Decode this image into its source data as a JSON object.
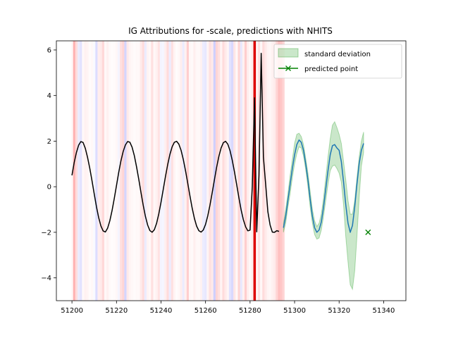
{
  "chart_data": {
    "type": "line",
    "title": "IG Attributions for -scale, predictions with NHITS",
    "xlabel": "",
    "ylabel": "",
    "xlim": [
      51193,
      51350
    ],
    "ylim": [
      -5,
      6.4
    ],
    "xticks": [
      51200,
      51220,
      51240,
      51260,
      51280,
      51300,
      51320,
      51340
    ],
    "yticks": [
      -4,
      -2,
      0,
      2,
      4,
      6
    ],
    "grid": false,
    "legend_position": "top-right",
    "legend": [
      {
        "label": "standard deviation",
        "kind": "patch"
      },
      {
        "label": "predicted point",
        "kind": "line-x"
      }
    ],
    "colors": {
      "history": "#000000",
      "forecast": "#1f77b4",
      "std_fill": "#2ca02c",
      "predicted_point": "#008000",
      "positive_attr": "#ff0000",
      "negative_attr": "#0000ff"
    },
    "attributions": {
      "x_start": 51200,
      "x_end": 51295,
      "values": [
        0.05,
        0.55,
        0.25,
        -0.1,
        -0.15,
        0.05,
        0.1,
        0.08,
        0.03,
        0.05,
        -0.03,
        -0.18,
        0.12,
        0.15,
        0.28,
        0.05,
        0.1,
        0.04,
        0.02,
        0.03,
        0.06,
        -0.05,
        0.22,
        0.3,
        -0.22,
        0.15,
        0.08,
        0.05,
        0.03,
        0.05,
        0.04,
        0.15,
        0.25,
        -0.1,
        0.08,
        0.05,
        0.22,
        0.06,
        0.1,
        0.2,
        -0.06,
        -0.05,
        0.12,
        0.25,
        -0.1,
        0.22,
        0.08,
        0.03,
        0.05,
        0.12,
        -0.1,
        0.1,
        0.35,
        0.06,
        0.04,
        0.12,
        0.06,
        0.05,
        0.1,
        -0.1,
        -0.12,
        0.08,
        0.22,
        0.15,
        -0.25,
        0.3,
        0.22,
        0.08,
        0.25,
        0.15,
        0.07,
        -0.15,
        -0.2,
        0.18,
        0.05,
        0.3,
        -0.12,
        0.1,
        0.35,
        0.12,
        0.05,
        0.12,
        1.0,
        0.06,
        0.22,
        0.06,
        0.25,
        0.15,
        0.08,
        0.06,
        0.1,
        0.14,
        0.3,
        0.45,
        0.4,
        0.3
      ]
    },
    "history": {
      "x_start": 51200,
      "values": [
        0.5,
        1.059,
        1.5,
        1.822,
        1.981,
        1.941,
        1.683,
        1.289,
        0.811,
        0.264,
        -0.317,
        -0.877,
        -1.356,
        -1.72,
        -1.94,
        -1.987,
        -1.823,
        -1.5,
        -1.052,
        -0.519,
        0.052,
        0.625,
        1.135,
        1.544,
        1.832,
        1.982,
        1.952,
        1.736,
        1.371,
        0.88,
        0.332,
        -0.248,
        -0.81,
        -1.304,
        -1.682,
        -1.924,
        -1.998,
        -1.889,
        -1.611,
        -1.194,
        -0.682,
        -0.121,
        0.446,
        0.972,
        1.419,
        1.751,
        1.951,
        1.993,
        1.871,
        1.601,
        1.2,
        0.709,
        0.161,
        -0.404,
        -0.94,
        -1.389,
        -1.729,
        -1.93,
        -1.992,
        -1.898,
        -1.653,
        -1.278,
        -0.801,
        -0.259,
        0.311,
        0.862,
        1.335,
        1.702,
        1.931,
        1.992,
        1.868,
        1.583,
        1.162,
        0.651,
        0.085,
        -0.494,
        -1.025,
        -1.453,
        -1.758,
        -1.935,
        -1.905,
        0.0,
        3.9,
        -1.98,
        0.5,
        5.85,
        1.3,
        0.11,
        -1.1,
        -1.68,
        -1.99,
        -2.0,
        -1.93,
        -1.96
      ]
    },
    "forecast": {
      "x_start": 51295,
      "mean": [
        -1.8,
        -1.3,
        -0.6,
        0.1,
        0.8,
        1.4,
        1.85,
        2.05,
        1.95,
        1.6,
        1.0,
        0.3,
        -0.55,
        -1.3,
        -1.8,
        -2.0,
        -1.9,
        -1.55,
        -0.9,
        -0.1,
        0.7,
        1.4,
        1.8,
        1.85,
        1.7,
        1.6,
        1.1,
        0.2,
        -0.8,
        -1.6,
        -2.0,
        -1.7,
        -0.9,
        0.1,
        1.0,
        1.6,
        1.9
      ],
      "upper": [
        -1.6,
        -1.0,
        -0.3,
        0.5,
        1.2,
        1.9,
        2.3,
        2.35,
        2.2,
        1.85,
        1.25,
        0.6,
        -0.2,
        -1.0,
        -1.5,
        -1.75,
        -1.6,
        -1.2,
        -0.5,
        0.4,
        1.3,
        2.1,
        2.7,
        2.85,
        2.6,
        2.3,
        1.9,
        1.1,
        0.3,
        -0.6,
        -1.2,
        -1.2,
        -0.6,
        0.4,
        1.3,
        2.0,
        2.4
      ],
      "lower": [
        -2.0,
        -1.6,
        -0.9,
        -0.3,
        0.4,
        1.0,
        1.45,
        1.75,
        1.7,
        1.35,
        0.75,
        0.0,
        -0.9,
        -1.6,
        -2.1,
        -2.3,
        -2.25,
        -1.9,
        -1.3,
        -0.6,
        0.1,
        0.7,
        0.9,
        0.95,
        0.8,
        0.6,
        0.2,
        -0.8,
        -2.2,
        -3.3,
        -4.3,
        -4.5,
        -3.7,
        -2.2,
        -0.5,
        0.9,
        1.5
      ]
    },
    "predicted_point": {
      "x": 51333,
      "y": -2.0
    }
  }
}
